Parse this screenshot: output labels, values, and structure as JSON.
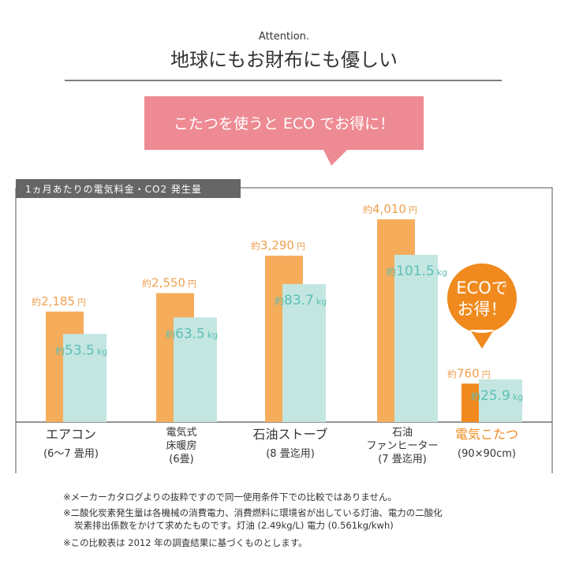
{
  "header": {
    "kicker": "Attention.",
    "title": "地球にもお財布にも優しい",
    "banner": "こたつを使うと ECO でお得に！"
  },
  "chart_data": {
    "type": "bar",
    "title": "1ヵ月あたりの電気料金・CO2 発生量",
    "categories": [
      [
        "エアコン",
        "(6〜7 畳用)"
      ],
      [
        "電気式",
        "床暖房",
        "(6畳)"
      ],
      [
        "石油ストーブ",
        "(8 畳迄用)"
      ],
      [
        "石油",
        "ファンヒーター",
        "(7 畳迄用)"
      ],
      [
        "電気こたつ",
        "(90×90cm)"
      ]
    ],
    "highlight_index": 4,
    "highlight_label_color": "#f08a1e",
    "series": [
      {
        "prefix": "約",
        "unit": "円",
        "color": "#f5ad5c",
        "highlight_color": "#f08a1e",
        "label_color": "#f0a050",
        "values": [
          2185,
          2550,
          3290,
          4010,
          760
        ],
        "value_labels": [
          "2,185",
          "2,550",
          "3,290",
          "4,010",
          "760"
        ]
      },
      {
        "prefix": "約",
        "unit": "kg",
        "color": "#c3e6e1",
        "highlight_color": "#c3e6e1",
        "label_color": "#5cbfb4",
        "values": [
          53.5,
          63.5,
          83.7,
          101.5,
          25.9
        ]
      }
    ],
    "callout": [
      "ECOで",
      "お得！"
    ]
  },
  "notes": [
    "※メーカーカタログよりの抜粋ですので同一使用条件下での比較ではありません。",
    "※二酸化炭素発生量は各機械の消費電力、消費燃料に環境省が出している灯油、電力の二酸化",
    "炭素排出係数をかけて求めたものです。灯油 (2.49kg/L) 電力 (0.561kg/kwh)",
    "※この比較表は 2012 年の調査結果に基づくものとします。"
  ]
}
